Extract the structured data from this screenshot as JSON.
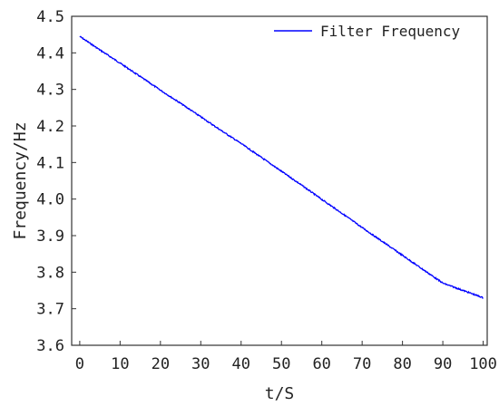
{
  "chart_data": {
    "type": "line",
    "title": "",
    "xlabel": "t/S",
    "ylabel": "Frequency/Hz",
    "xlim": [
      -2,
      101
    ],
    "ylim": [
      3.6,
      4.5
    ],
    "x_ticks": [
      0,
      10,
      20,
      30,
      40,
      50,
      60,
      70,
      80,
      90,
      100
    ],
    "y_ticks": [
      3.6,
      3.7,
      3.8,
      3.9,
      4.0,
      4.1,
      4.2,
      4.3,
      4.4,
      4.5
    ],
    "x_tick_labels": [
      "0",
      "10",
      "20",
      "30",
      "40",
      "50",
      "60",
      "70",
      "80",
      "90",
      "100"
    ],
    "y_tick_labels": [
      "3.6",
      "3.7",
      "3.8",
      "3.9",
      "4.0",
      "4.1",
      "4.2",
      "4.3",
      "4.4",
      "4.5"
    ],
    "grid": false,
    "legend_position": "top-right",
    "series": [
      {
        "name": "Filter Frequency",
        "color": "#0000ff",
        "x": [
          0,
          5,
          10,
          15,
          20,
          25,
          30,
          35,
          40,
          45,
          50,
          55,
          60,
          65,
          70,
          75,
          80,
          85,
          90,
          95,
          100
        ],
        "values": [
          4.445,
          4.408,
          4.372,
          4.335,
          4.298,
          4.262,
          4.225,
          4.188,
          4.152,
          4.114,
          4.076,
          4.038,
          3.999,
          3.961,
          3.922,
          3.884,
          3.846,
          3.808,
          3.77,
          3.75,
          3.73
        ]
      }
    ]
  }
}
